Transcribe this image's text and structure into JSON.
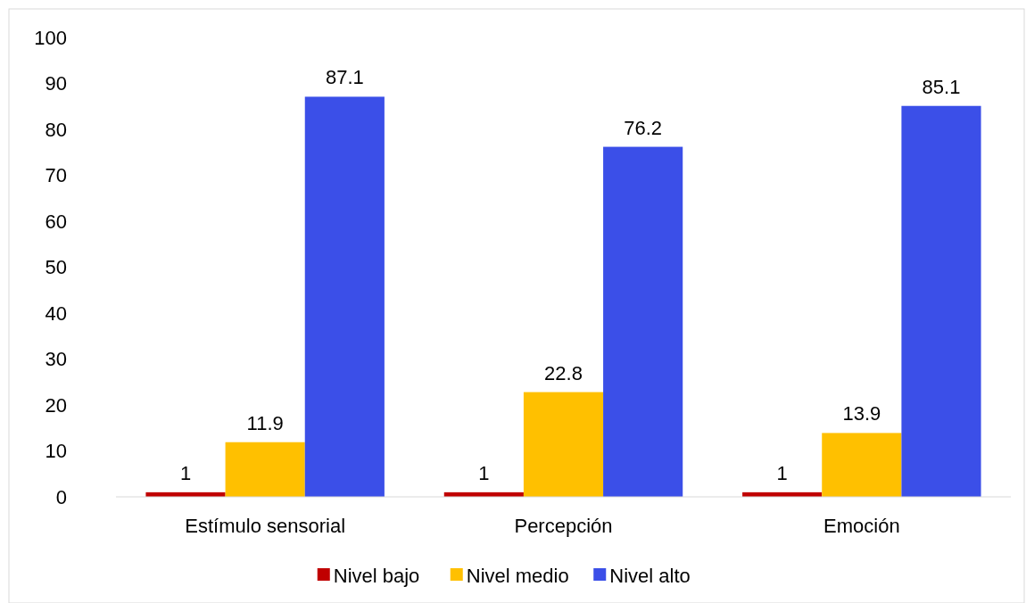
{
  "chart_data": {
    "type": "bar",
    "categories": [
      "Estímulo sensorial",
      "Percepción",
      "Emoción"
    ],
    "series": [
      {
        "name": "Nivel bajo",
        "color": "#c00000",
        "values": [
          1,
          1,
          1
        ]
      },
      {
        "name": "Nivel medio",
        "color": "#ffc000",
        "values": [
          11.9,
          22.8,
          13.9
        ]
      },
      {
        "name": "Nivel alto",
        "color": "#3b4fe8",
        "values": [
          87.1,
          76.2,
          85.1
        ]
      }
    ],
    "ylim": [
      0,
      100
    ],
    "yticks": [
      0,
      10,
      20,
      30,
      40,
      50,
      60,
      70,
      80,
      90,
      100
    ],
    "grid": false,
    "legend": "bottom",
    "data_labels": true
  }
}
